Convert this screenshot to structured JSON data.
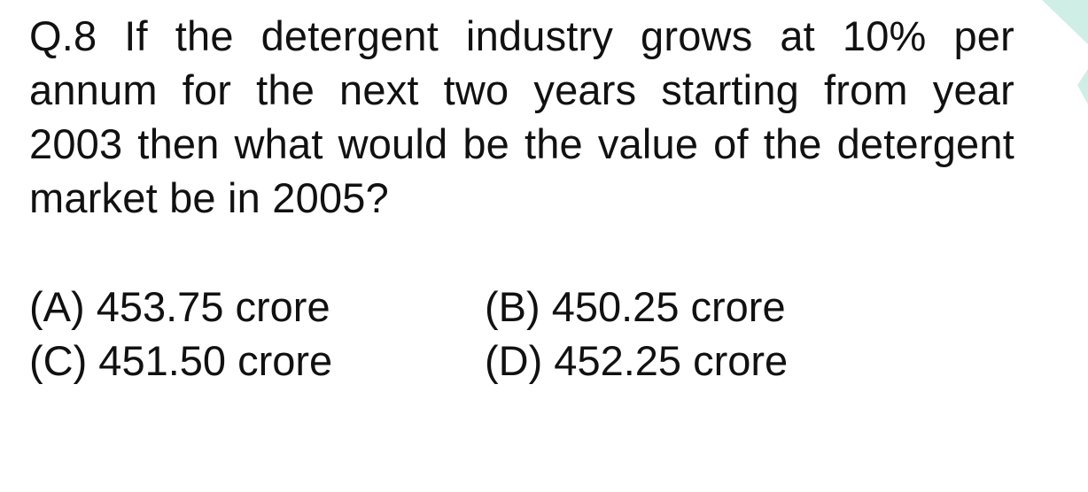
{
  "question": {
    "text": "Q.8 If the detergent industry grows at 10% per annum for the next two years starting from year 2003 then what would be the value of the detergent market be in 2005?"
  },
  "options": [
    {
      "label": "(A) 453.75 crore"
    },
    {
      "label": "(B) 450.25 crore"
    },
    {
      "label": "(C) 451.50 crore"
    },
    {
      "label": "(D) 452.25 crore"
    }
  ],
  "colors": {
    "text": "#111111",
    "accent": "#cfeee6"
  },
  "decoration": {
    "icon": "corner-triangle-icon"
  }
}
